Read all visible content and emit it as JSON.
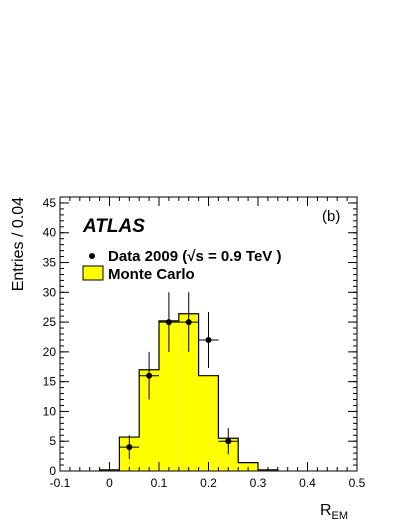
{
  "chart_data": {
    "type": "bar",
    "panel_label": "(b)",
    "experiment_label": "ATLAS",
    "xlabel": "R",
    "xlabel_subscript": "EM",
    "ylabel": "Entries / 0.04",
    "xlim": [
      -0.1,
      0.5
    ],
    "ylim": [
      0,
      46
    ],
    "x_ticks": [
      -0.1,
      0,
      0.1,
      0.2,
      0.3,
      0.4,
      0.5
    ],
    "x_tick_labels": [
      "-0.1",
      "0",
      "0.1",
      "0.2",
      "0.3",
      "0.4",
      "0.5"
    ],
    "y_ticks": [
      0,
      5,
      10,
      15,
      20,
      25,
      30,
      35,
      40,
      45
    ],
    "y_tick_labels": [
      "0",
      "5",
      "10",
      "15",
      "20",
      "25",
      "30",
      "35",
      "40",
      "45"
    ],
    "grid": false,
    "legend": {
      "placement": "top-left",
      "entries": [
        {
          "label_prefix": "Data 2009 (",
          "label_sqrt": "√",
          "label_rest": "s = 0.9 TeV )",
          "marker": "point"
        },
        {
          "label": "Monte Carlo",
          "marker": "filled-box"
        }
      ]
    },
    "series": [
      {
        "name": "Monte Carlo",
        "kind": "histogram",
        "color": "#ffff00",
        "edge_color": "#000000",
        "bin_edges": [
          -0.02,
          0.02,
          0.06,
          0.1,
          0.14,
          0.18,
          0.22,
          0.26,
          0.3,
          0.34
        ],
        "values": [
          0.2,
          5.7,
          17.0,
          25.2,
          26.4,
          16.0,
          5.5,
          1.4,
          0.2
        ]
      },
      {
        "name": "Data 2009",
        "kind": "points",
        "color": "#000000",
        "x": [
          0.04,
          0.08,
          0.12,
          0.16,
          0.2,
          0.24
        ],
        "y": [
          4,
          16,
          25,
          25,
          22,
          5
        ],
        "yerr": [
          2.0,
          4.0,
          5.0,
          5.0,
          4.7,
          2.2
        ],
        "xerr": 0.02
      }
    ]
  }
}
